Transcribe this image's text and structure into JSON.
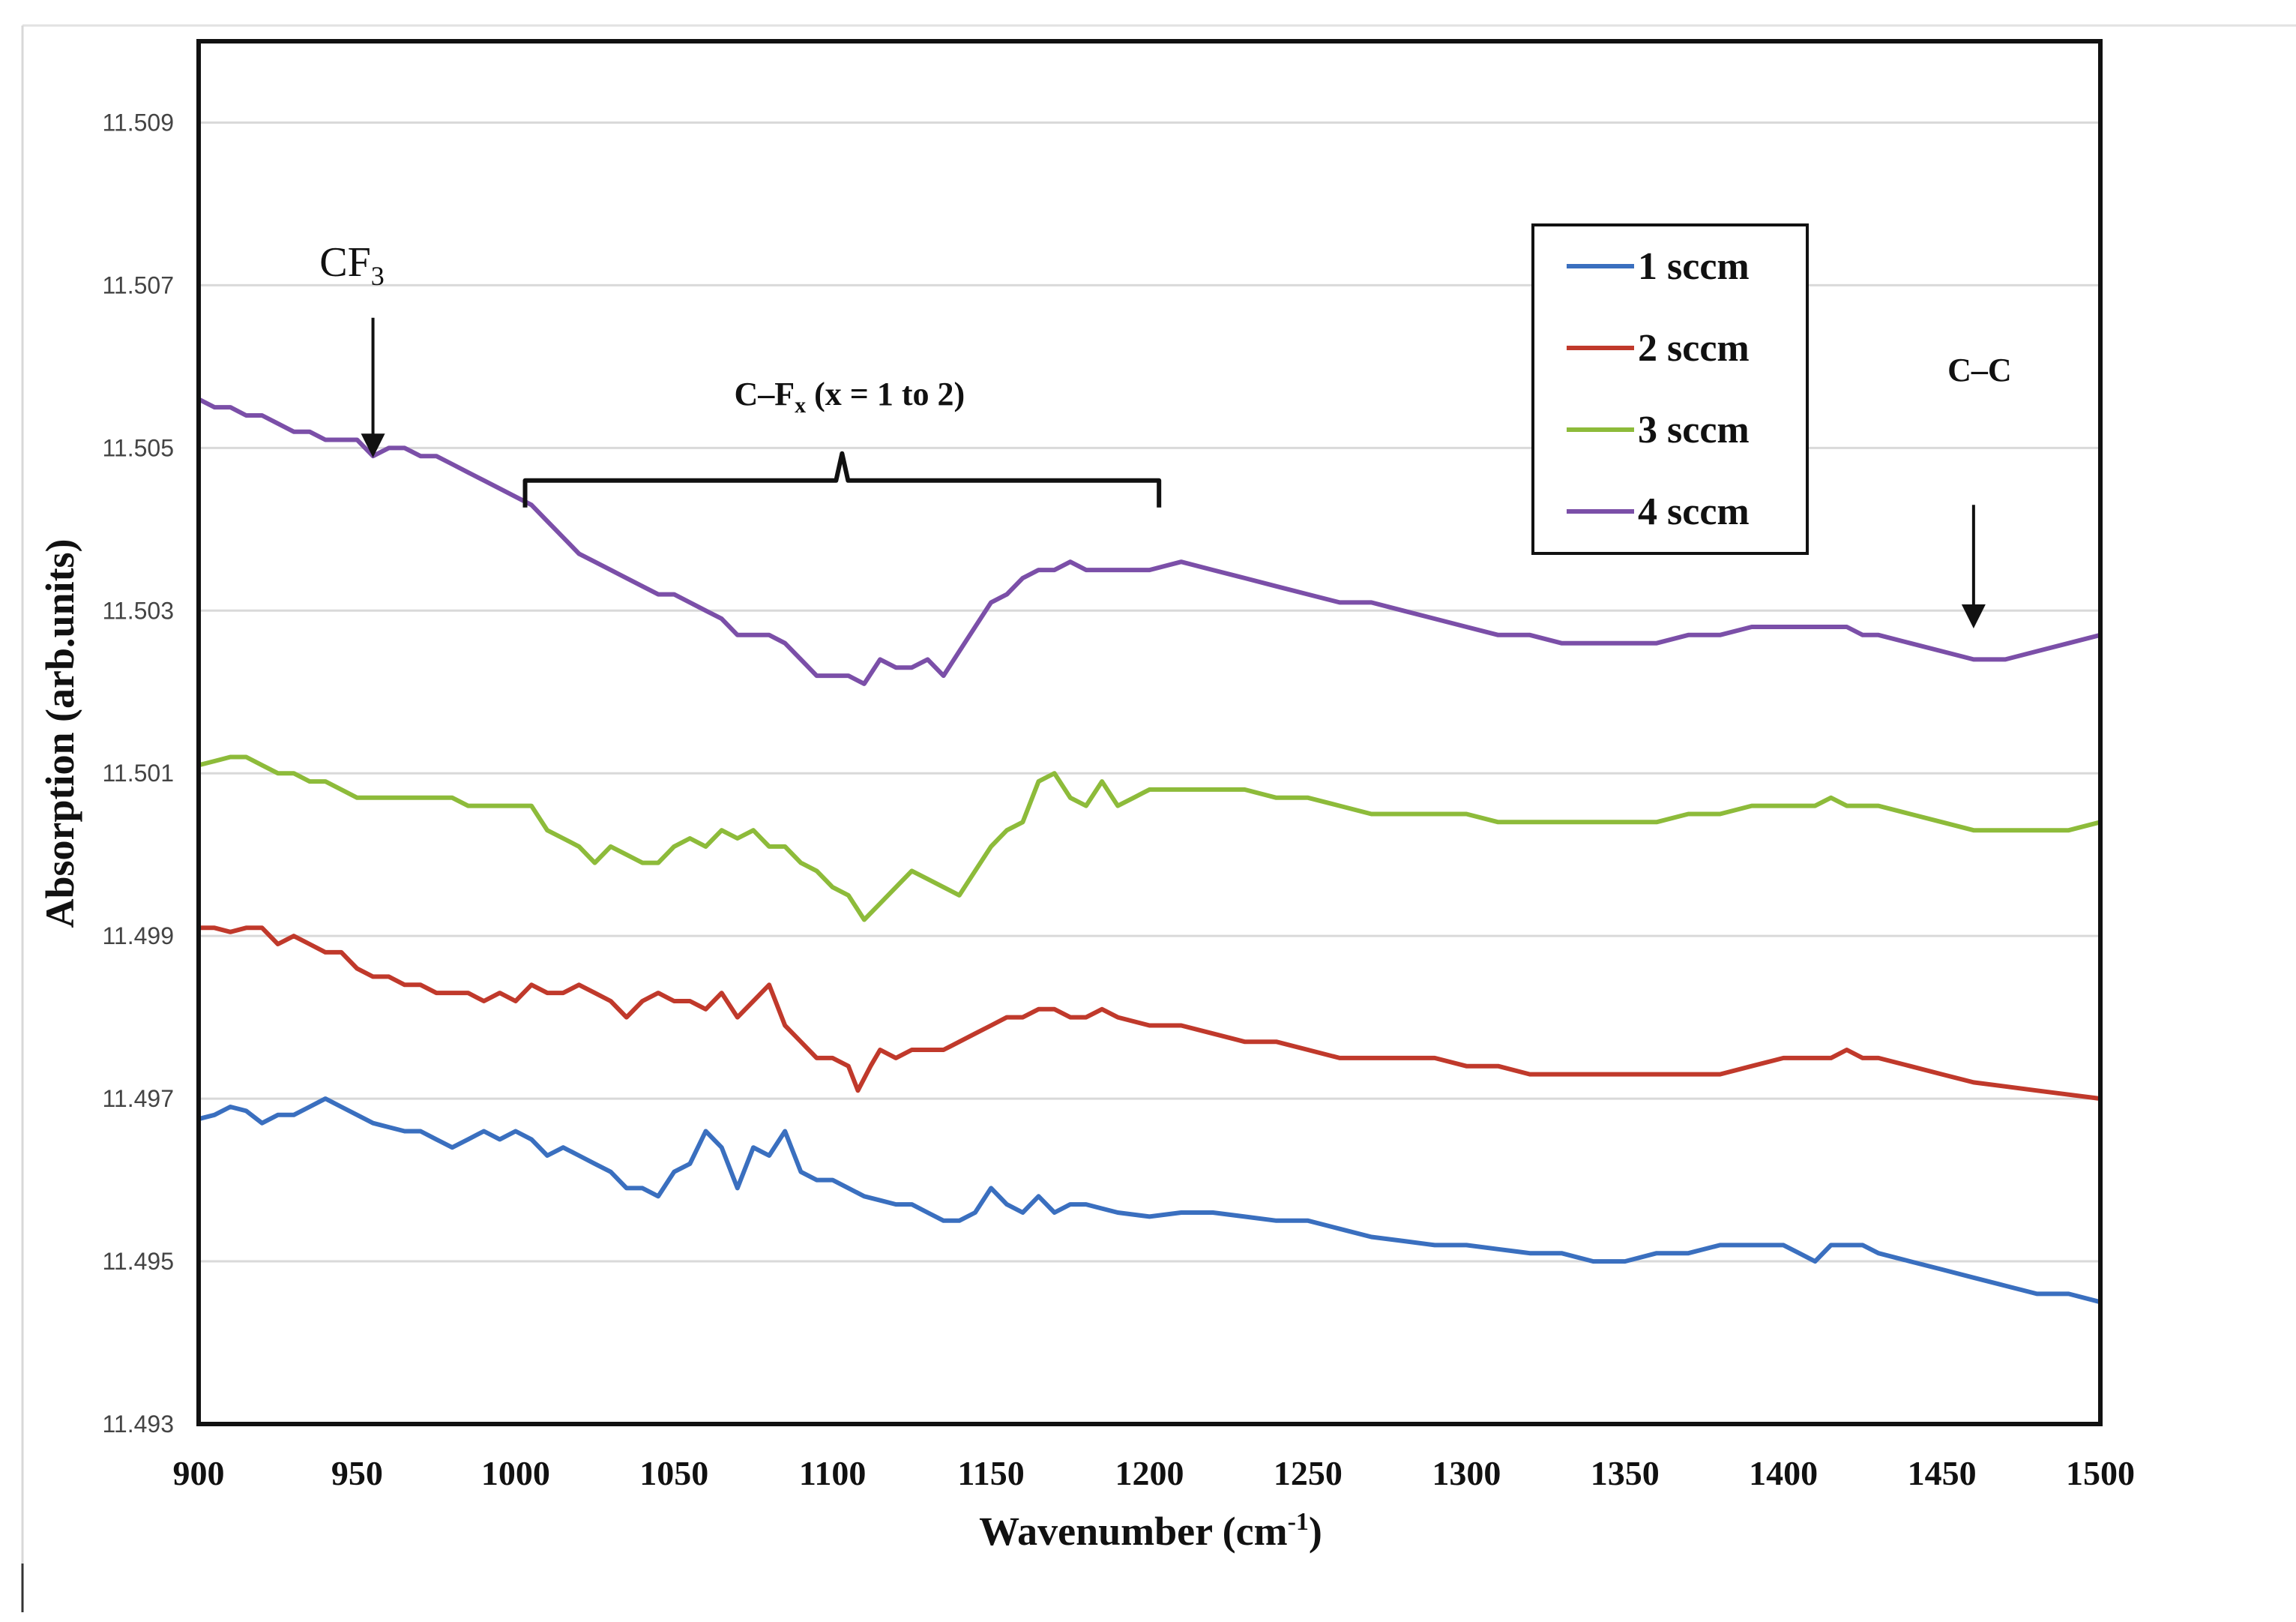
{
  "chart_data": {
    "type": "line",
    "title": "",
    "xlabel": "Wavenumber",
    "xlabel_unit_base": "cm",
    "xlabel_unit_exp": "-1",
    "ylabel": "Absorption  (arb.units)",
    "xlim": [
      900,
      1500
    ],
    "ylim": [
      11.493,
      11.51
    ],
    "x_ticks": [
      900,
      950,
      1000,
      1050,
      1100,
      1150,
      1200,
      1250,
      1300,
      1350,
      1400,
      1450,
      1500
    ],
    "y_ticks": [
      "11.493",
      "11.495",
      "11.497",
      "11.499",
      "11.501",
      "11.503",
      "11.505",
      "11.507",
      "11.509"
    ],
    "grid": true,
    "legend_position": "top-right",
    "annotations": {
      "cf3": {
        "base": "CF",
        "sub": "3",
        "x": 955,
        "arrow_from_y": 11.5066,
        "arrow_to_y": 11.5049
      },
      "cfx": {
        "text_prefix": "C–F",
        "sub": "x",
        "text_suffix": "(x = 1 to 2)",
        "x_start": 1003,
        "x_end": 1203,
        "y": 11.5046
      },
      "cc": {
        "text": "C–C",
        "x": 1460,
        "arrow_from_y": 11.5043,
        "arrow_to_y": 11.5028
      }
    },
    "series": [
      {
        "name": "1 sccm",
        "color": "#3a6fbf",
        "x": [
          900,
          905,
          910,
          915,
          920,
          925,
          930,
          935,
          940,
          945,
          950,
          955,
          960,
          965,
          970,
          975,
          980,
          985,
          990,
          995,
          1000,
          1005,
          1010,
          1015,
          1020,
          1025,
          1030,
          1035,
          1040,
          1045,
          1050,
          1055,
          1060,
          1065,
          1070,
          1075,
          1080,
          1085,
          1090,
          1095,
          1100,
          1105,
          1110,
          1115,
          1120,
          1125,
          1130,
          1135,
          1140,
          1145,
          1150,
          1155,
          1160,
          1165,
          1170,
          1175,
          1180,
          1185,
          1190,
          1200,
          1210,
          1220,
          1230,
          1240,
          1250,
          1260,
          1270,
          1280,
          1290,
          1300,
          1310,
          1320,
          1330,
          1340,
          1350,
          1360,
          1370,
          1380,
          1390,
          1400,
          1405,
          1410,
          1415,
          1420,
          1425,
          1430,
          1440,
          1450,
          1460,
          1470,
          1480,
          1490,
          1500
        ],
        "y": [
          11.49675,
          11.4968,
          11.4969,
          11.49685,
          11.4967,
          11.4968,
          11.4968,
          11.4969,
          11.497,
          11.4969,
          11.4968,
          11.4967,
          11.49665,
          11.4966,
          11.4966,
          11.4965,
          11.4964,
          11.4965,
          11.4966,
          11.4965,
          11.4966,
          11.4965,
          11.4963,
          11.4964,
          11.4963,
          11.4962,
          11.4961,
          11.4959,
          11.4959,
          11.4958,
          11.4961,
          11.4962,
          11.4966,
          11.4964,
          11.4959,
          11.4964,
          11.4963,
          11.4966,
          11.4961,
          11.496,
          11.496,
          11.4959,
          11.4958,
          11.49575,
          11.4957,
          11.4957,
          11.4956,
          11.4955,
          11.4955,
          11.4956,
          11.4959,
          11.4957,
          11.4956,
          11.4958,
          11.4956,
          11.4957,
          11.4957,
          11.49565,
          11.4956,
          11.49555,
          11.4956,
          11.4956,
          11.49555,
          11.4955,
          11.4955,
          11.4954,
          11.4953,
          11.49525,
          11.4952,
          11.4952,
          11.49515,
          11.4951,
          11.4951,
          11.495,
          11.495,
          11.4951,
          11.4951,
          11.4952,
          11.4952,
          11.4952,
          11.4951,
          11.495,
          11.4952,
          11.4952,
          11.4952,
          11.4951,
          11.495,
          11.4949,
          11.4948,
          11.4947,
          11.4946,
          11.4946,
          11.4945
        ]
      },
      {
        "name": "2 sccm",
        "color": "#c0392b",
        "x": [
          900,
          905,
          910,
          915,
          920,
          925,
          930,
          935,
          940,
          945,
          950,
          955,
          960,
          965,
          970,
          975,
          980,
          985,
          990,
          995,
          1000,
          1005,
          1010,
          1015,
          1020,
          1025,
          1030,
          1035,
          1040,
          1045,
          1050,
          1055,
          1060,
          1065,
          1070,
          1075,
          1080,
          1085,
          1090,
          1095,
          1100,
          1105,
          1108,
          1112,
          1115,
          1120,
          1125,
          1130,
          1135,
          1140,
          1145,
          1150,
          1155,
          1160,
          1165,
          1170,
          1175,
          1180,
          1185,
          1190,
          1200,
          1210,
          1220,
          1230,
          1240,
          1250,
          1260,
          1270,
          1280,
          1290,
          1300,
          1310,
          1320,
          1330,
          1340,
          1350,
          1360,
          1370,
          1380,
          1390,
          1400,
          1405,
          1410,
          1415,
          1420,
          1425,
          1430,
          1440,
          1450,
          1460,
          1470,
          1480,
          1490,
          1500
        ],
        "y": [
          11.4991,
          11.4991,
          11.49905,
          11.4991,
          11.4991,
          11.4989,
          11.499,
          11.4989,
          11.4988,
          11.4988,
          11.4986,
          11.4985,
          11.4985,
          11.4984,
          11.4984,
          11.4983,
          11.4983,
          11.4983,
          11.4982,
          11.4983,
          11.4982,
          11.4984,
          11.4983,
          11.4983,
          11.4984,
          11.4983,
          11.4982,
          11.498,
          11.4982,
          11.4983,
          11.4982,
          11.4982,
          11.4981,
          11.4983,
          11.498,
          11.4982,
          11.4984,
          11.4979,
          11.4977,
          11.4975,
          11.4975,
          11.4974,
          11.4971,
          11.4974,
          11.4976,
          11.4975,
          11.4976,
          11.4976,
          11.4976,
          11.4977,
          11.4978,
          11.4979,
          11.498,
          11.498,
          11.4981,
          11.4981,
          11.498,
          11.498,
          11.4981,
          11.498,
          11.4979,
          11.4979,
          11.4978,
          11.4977,
          11.4977,
          11.4976,
          11.4975,
          11.4975,
          11.4975,
          11.4975,
          11.4974,
          11.4974,
          11.4973,
          11.4973,
          11.4973,
          11.4973,
          11.4973,
          11.4973,
          11.4973,
          11.4974,
          11.4975,
          11.4975,
          11.4975,
          11.4975,
          11.4976,
          11.4975,
          11.4975,
          11.4974,
          11.4973,
          11.4972,
          11.49715,
          11.4971,
          11.49705,
          11.497
        ]
      },
      {
        "name": "3 sccm",
        "color": "#8dbb3a",
        "x": [
          900,
          905,
          910,
          915,
          920,
          925,
          930,
          935,
          940,
          945,
          950,
          955,
          960,
          965,
          970,
          975,
          980,
          985,
          990,
          995,
          1000,
          1005,
          1010,
          1015,
          1020,
          1025,
          1030,
          1035,
          1040,
          1045,
          1050,
          1055,
          1060,
          1065,
          1070,
          1075,
          1080,
          1085,
          1090,
          1095,
          1100,
          1105,
          1110,
          1115,
          1120,
          1125,
          1130,
          1135,
          1140,
          1145,
          1150,
          1155,
          1160,
          1165,
          1170,
          1175,
          1180,
          1185,
          1190,
          1195,
          1200,
          1210,
          1220,
          1230,
          1240,
          1250,
          1260,
          1270,
          1280,
          1290,
          1300,
          1310,
          1320,
          1330,
          1340,
          1350,
          1360,
          1370,
          1380,
          1390,
          1400,
          1405,
          1410,
          1415,
          1420,
          1425,
          1430,
          1440,
          1450,
          1460,
          1470,
          1480,
          1490,
          1500
        ],
        "y": [
          11.5011,
          11.50115,
          11.5012,
          11.5012,
          11.5011,
          11.501,
          11.501,
          11.5009,
          11.5009,
          11.5008,
          11.5007,
          11.5007,
          11.5007,
          11.5007,
          11.5007,
          11.5007,
          11.5007,
          11.5006,
          11.5006,
          11.5006,
          11.5006,
          11.5006,
          11.5003,
          11.5002,
          11.5001,
          11.4999,
          11.5001,
          11.5,
          11.4999,
          11.4999,
          11.5001,
          11.5002,
          11.5001,
          11.5003,
          11.5002,
          11.5003,
          11.5001,
          11.5001,
          11.4999,
          11.4998,
          11.4996,
          11.4995,
          11.4992,
          11.4994,
          11.4996,
          11.4998,
          11.4997,
          11.4996,
          11.4995,
          11.4998,
          11.5001,
          11.5003,
          11.5004,
          11.5009,
          11.501,
          11.5007,
          11.5006,
          11.5009,
          11.5006,
          11.5007,
          11.5008,
          11.5008,
          11.5008,
          11.5008,
          11.5007,
          11.5007,
          11.5006,
          11.5005,
          11.5005,
          11.5005,
          11.5005,
          11.5004,
          11.5004,
          11.5004,
          11.5004,
          11.5004,
          11.5004,
          11.5005,
          11.5005,
          11.5006,
          11.5006,
          11.5006,
          11.5006,
          11.5007,
          11.5006,
          11.5006,
          11.5006,
          11.5005,
          11.5004,
          11.5003,
          11.5003,
          11.5003,
          11.5003,
          11.5004
        ]
      },
      {
        "name": "4 sccm",
        "color": "#7b4fa8",
        "x": [
          900,
          905,
          910,
          915,
          920,
          925,
          930,
          935,
          940,
          945,
          950,
          955,
          960,
          965,
          970,
          975,
          980,
          985,
          990,
          995,
          1000,
          1005,
          1010,
          1015,
          1020,
          1025,
          1030,
          1035,
          1040,
          1045,
          1050,
          1055,
          1060,
          1065,
          1070,
          1075,
          1080,
          1085,
          1090,
          1095,
          1100,
          1105,
          1110,
          1115,
          1120,
          1125,
          1130,
          1135,
          1140,
          1145,
          1150,
          1155,
          1160,
          1165,
          1170,
          1175,
          1180,
          1185,
          1190,
          1200,
          1210,
          1220,
          1230,
          1240,
          1250,
          1260,
          1270,
          1280,
          1290,
          1300,
          1310,
          1320,
          1330,
          1340,
          1350,
          1360,
          1370,
          1380,
          1390,
          1400,
          1405,
          1410,
          1415,
          1420,
          1425,
          1430,
          1440,
          1450,
          1460,
          1470,
          1480,
          1490,
          1500
        ],
        "y": [
          11.5056,
          11.5055,
          11.5055,
          11.5054,
          11.5054,
          11.5053,
          11.5052,
          11.5052,
          11.5051,
          11.5051,
          11.5051,
          11.5049,
          11.505,
          11.505,
          11.5049,
          11.5049,
          11.5048,
          11.5047,
          11.5046,
          11.5045,
          11.5044,
          11.5043,
          11.5041,
          11.5039,
          11.5037,
          11.5036,
          11.5035,
          11.5034,
          11.5033,
          11.5032,
          11.5032,
          11.5031,
          11.503,
          11.5029,
          11.5027,
          11.5027,
          11.5027,
          11.5026,
          11.5024,
          11.5022,
          11.5022,
          11.5022,
          11.5021,
          11.5024,
          11.5023,
          11.5023,
          11.5024,
          11.5022,
          11.5025,
          11.5028,
          11.5031,
          11.5032,
          11.5034,
          11.5035,
          11.5035,
          11.5036,
          11.5035,
          11.5035,
          11.5035,
          11.5035,
          11.5036,
          11.5035,
          11.5034,
          11.5033,
          11.5032,
          11.5031,
          11.5031,
          11.503,
          11.5029,
          11.5028,
          11.5027,
          11.5027,
          11.5026,
          11.5026,
          11.5026,
          11.5026,
          11.5027,
          11.5027,
          11.5028,
          11.5028,
          11.5028,
          11.5028,
          11.5028,
          11.5028,
          11.5027,
          11.5027,
          11.5026,
          11.5025,
          11.5024,
          11.5024,
          11.5025,
          11.5026,
          11.5027
        ]
      }
    ]
  }
}
